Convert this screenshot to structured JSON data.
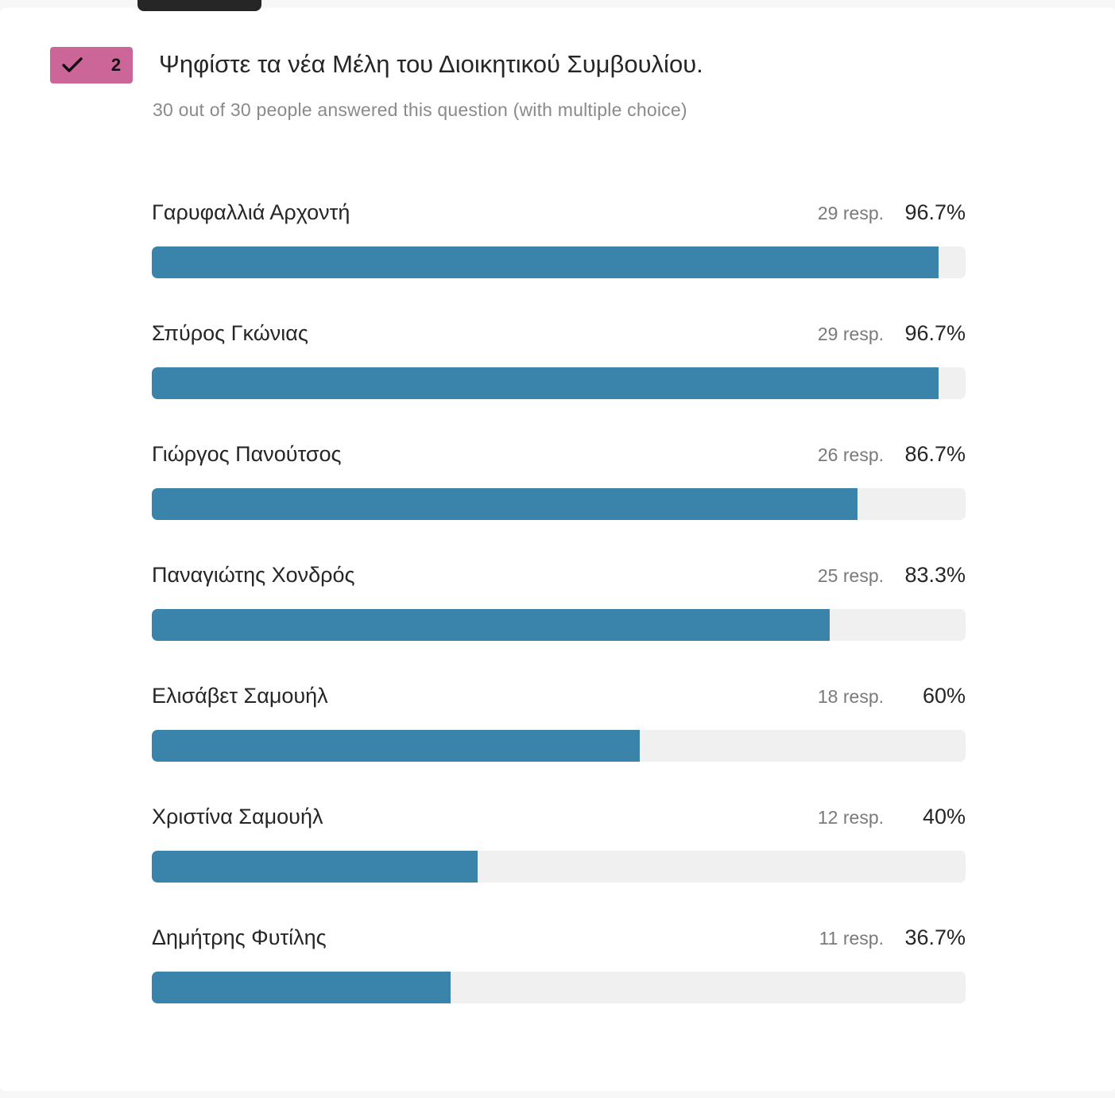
{
  "question": {
    "number": "2",
    "title": "Ψηφίστε τα νέα Μέλη του Διοικητικού Συμβουλίου.",
    "subtitle": "30 out of 30 people answered this question (with multiple choice)",
    "badge_color": "#cc6699",
    "bar_color": "#3a84ab"
  },
  "choices": [
    {
      "label": "Γαρυφαλλιά Αρχοντή",
      "responses": "29 resp.",
      "percent": "96.7%",
      "fraction": 0.967
    },
    {
      "label": "Σπύρος Γκώνιας",
      "responses": "29 resp.",
      "percent": "96.7%",
      "fraction": 0.967
    },
    {
      "label": "Γιώργος Πανούτσος",
      "responses": "26 resp.",
      "percent": "86.7%",
      "fraction": 0.867
    },
    {
      "label": "Παναγιώτης Χονδρός",
      "responses": "25 resp.",
      "percent": "83.3%",
      "fraction": 0.833
    },
    {
      "label": "Ελισάβετ Σαμουήλ",
      "responses": "18 resp.",
      "percent": "60%",
      "fraction": 0.6
    },
    {
      "label": "Χριστίνα Σαμουήλ",
      "responses": "12 resp.",
      "percent": "40%",
      "fraction": 0.4
    },
    {
      "label": "Δημήτρης Φυτίλης",
      "responses": "11 resp.",
      "percent": "36.7%",
      "fraction": 0.367
    }
  ]
}
